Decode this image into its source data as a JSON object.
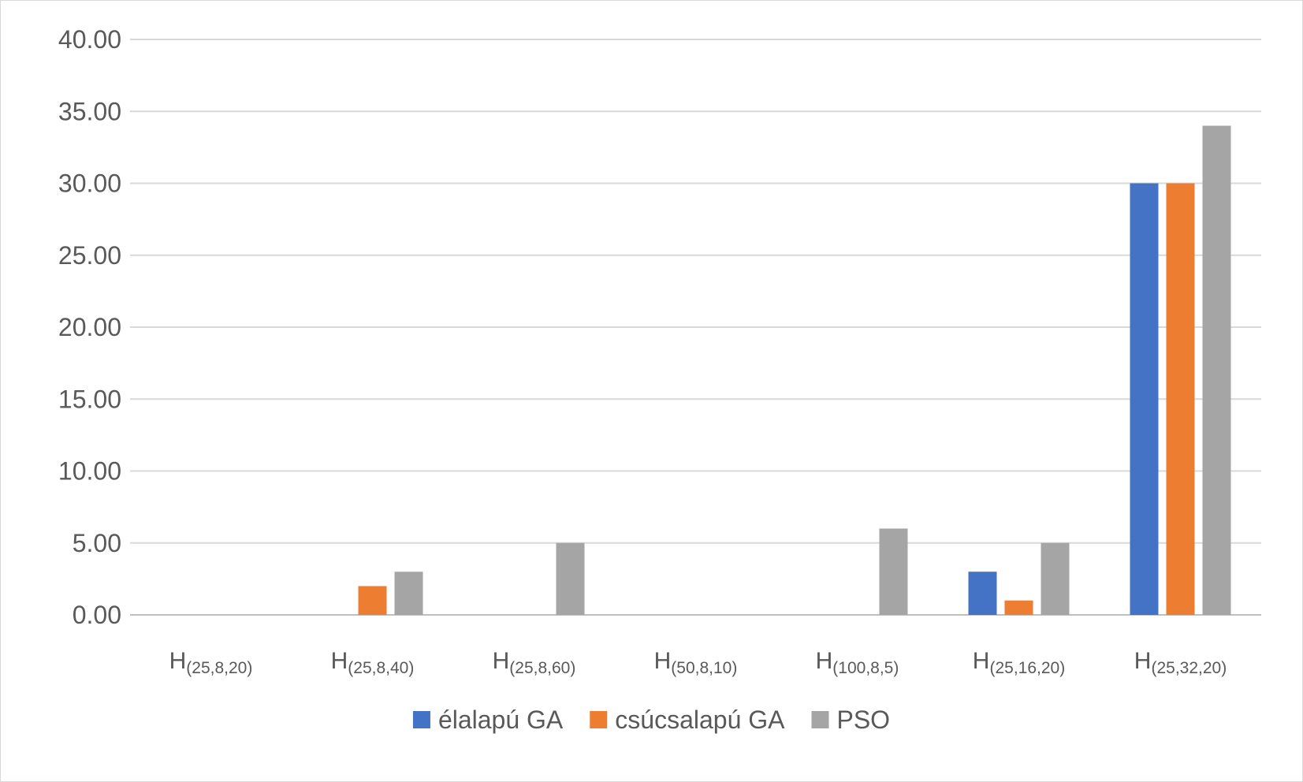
{
  "chart_data": {
    "type": "bar",
    "title": "",
    "xlabel": "",
    "ylabel": "",
    "ylim": [
      0,
      40
    ],
    "ytick_step": 5,
    "ytick_format_decimals": 2,
    "grid": true,
    "legend_position": "bottom",
    "categories": [
      {
        "main": "H",
        "sub": "(25,8,20)"
      },
      {
        "main": "H",
        "sub": "(25,8,40)"
      },
      {
        "main": "H",
        "sub": "(25,8,60)"
      },
      {
        "main": "H",
        "sub": "(50,8,10)"
      },
      {
        "main": "H",
        "sub": "(100,8,5)"
      },
      {
        "main": "H",
        "sub": "(25,16,20)"
      },
      {
        "main": "H",
        "sub": "(25,32,20)"
      }
    ],
    "series": [
      {
        "name": "élalapú GA",
        "color": "#4472C4",
        "values": [
          0,
          0,
          0,
          0,
          0,
          3,
          30
        ]
      },
      {
        "name": "csúcsalapú GA",
        "color": "#ED7D31",
        "values": [
          0,
          2,
          0,
          0,
          0,
          1,
          30
        ]
      },
      {
        "name": "PSO",
        "color": "#A5A5A5",
        "values": [
          0,
          3,
          5,
          0,
          6,
          5,
          34
        ]
      }
    ]
  }
}
